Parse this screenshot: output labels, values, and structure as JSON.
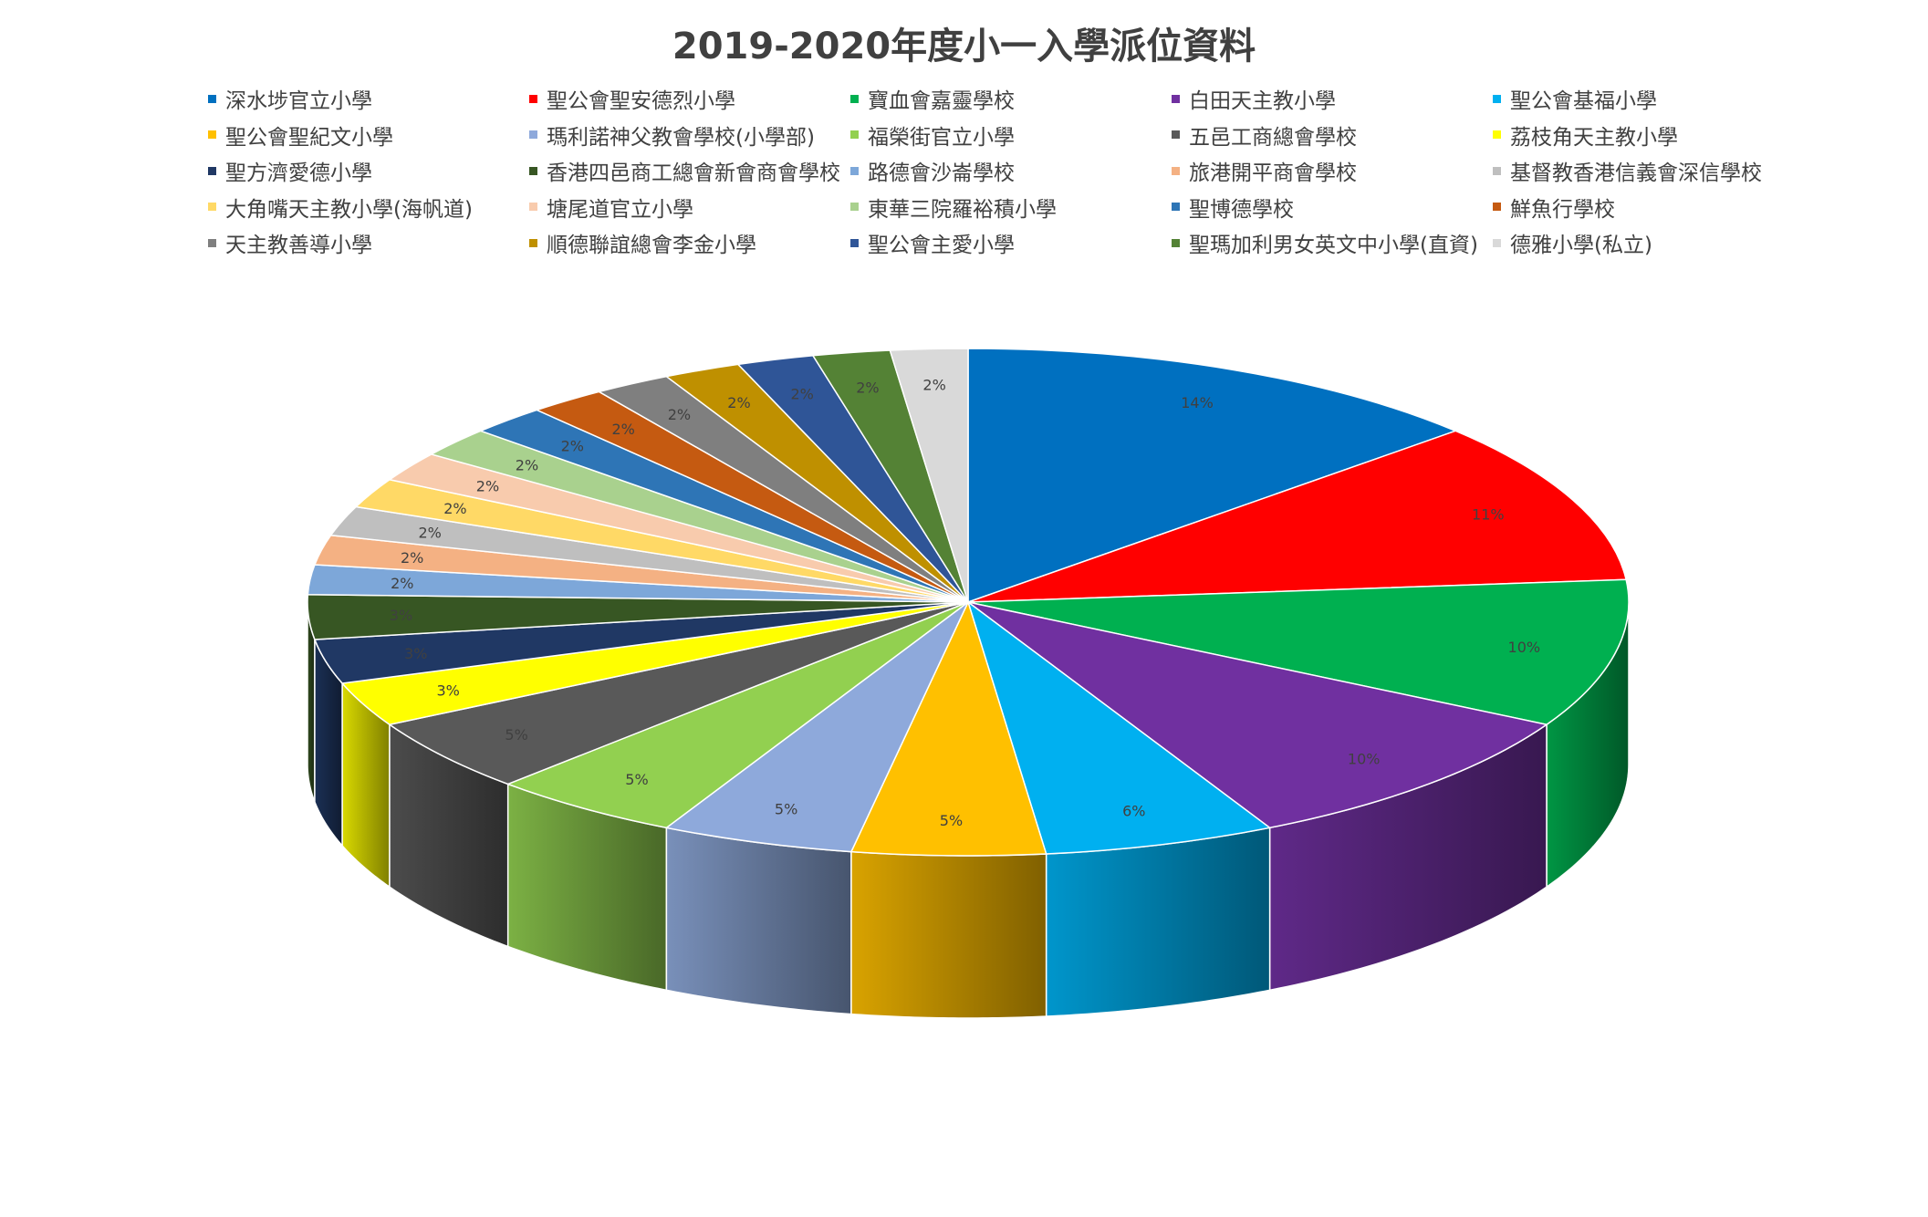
{
  "chart_data": {
    "type": "pie",
    "title": "2019-2020年度小一入學派位資料",
    "legend_position": "top",
    "slices": [
      {
        "label": "深水埗官立小學",
        "value": 14,
        "display": "14%",
        "color": "#0070C0"
      },
      {
        "label": "聖公會聖安德烈小學",
        "value": 11,
        "display": "11%",
        "color": "#FF0000"
      },
      {
        "label": "寶血會嘉靈學校",
        "value": 10,
        "display": "10%",
        "color": "#00B050"
      },
      {
        "label": "白田天主教小學",
        "value": 10,
        "display": "10%",
        "color": "#7030A0"
      },
      {
        "label": "聖公會基福小學",
        "value": 6,
        "display": "6%",
        "color": "#00B0F0"
      },
      {
        "label": "聖公會聖紀文小學",
        "value": 5,
        "display": "5%",
        "color": "#FFC000"
      },
      {
        "label": "瑪利諾神父教會學校(小學部)",
        "value": 5,
        "display": "5%",
        "color": "#8EA9DB"
      },
      {
        "label": "福榮街官立小學",
        "value": 5,
        "display": "5%",
        "color": "#92D050"
      },
      {
        "label": "五邑工商總會學校",
        "value": 5,
        "display": "5%",
        "color": "#595959"
      },
      {
        "label": "荔枝角天主教小學",
        "value": 3,
        "display": "3%",
        "color": "#FFFF00"
      },
      {
        "label": "聖方濟愛德小學",
        "value": 3,
        "display": "3%",
        "color": "#203864"
      },
      {
        "label": "香港四邑商工總會新會商會學校",
        "value": 3,
        "display": "3%",
        "color": "#375623"
      },
      {
        "label": "路德會沙崙學校",
        "value": 2,
        "display": "2%",
        "color": "#7DA7D9"
      },
      {
        "label": "旅港開平商會學校",
        "value": 2,
        "display": "2%",
        "color": "#F4B183"
      },
      {
        "label": "基督教香港信義會深信學校",
        "value": 2,
        "display": "2%",
        "color": "#BFBFBF"
      },
      {
        "label": "大角嘴天主教小學(海帆道)",
        "value": 2,
        "display": "2%",
        "color": "#FFD966"
      },
      {
        "label": "塘尾道官立小學",
        "value": 2,
        "display": "2%",
        "color": "#F8CBAD"
      },
      {
        "label": "東華三院羅裕積小學",
        "value": 2,
        "display": "2%",
        "color": "#A9D18E"
      },
      {
        "label": "聖博德學校",
        "value": 2,
        "display": "2%",
        "color": "#2E75B6"
      },
      {
        "label": "鮮魚行學校",
        "value": 2,
        "display": "2%",
        "color": "#C55A11"
      },
      {
        "label": "天主教善導小學",
        "value": 2,
        "display": "2%",
        "color": "#7F7F7F"
      },
      {
        "label": "順德聯誼總會李金小學",
        "value": 2,
        "display": "2%",
        "color": "#BF9000"
      },
      {
        "label": "聖公會主愛小學",
        "value": 2,
        "display": "2%",
        "color": "#2F5597"
      },
      {
        "label": "聖瑪加利男女英文中小學(直資)",
        "value": 2,
        "display": "2%",
        "color": "#548235"
      },
      {
        "label": "德雅小學(私立)",
        "value": 2,
        "display": "2%",
        "color": "#D9D9D9"
      }
    ]
  }
}
